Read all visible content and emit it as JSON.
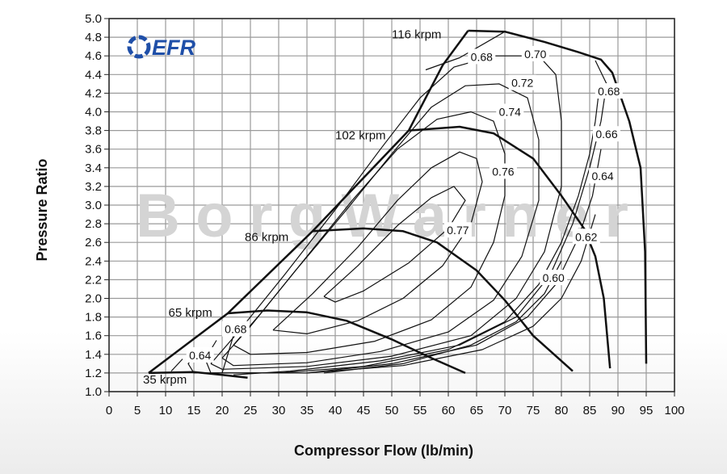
{
  "chart_data": {
    "type": "line",
    "title": "",
    "xlabel": "Compressor Flow (lb/min)",
    "ylabel": "Pressure Ratio",
    "xlim": [
      0,
      100
    ],
    "ylim": [
      1.0,
      5.0
    ],
    "x_ticks": [
      "0",
      "5",
      "10",
      "15",
      "20",
      "25",
      "30",
      "35",
      "40",
      "45",
      "50",
      "55",
      "60",
      "65",
      "70",
      "75",
      "80",
      "85",
      "90",
      "95",
      "100"
    ],
    "y_ticks": [
      "1.0",
      "1.2",
      "1.4",
      "1.6",
      "1.8",
      "2.0",
      "2.2",
      "2.4",
      "2.6",
      "2.8",
      "3.0",
      "3.2",
      "3.4",
      "3.6",
      "3.8",
      "4.0",
      "4.2",
      "4.4",
      "4.6",
      "4.8",
      "5.0"
    ],
    "grid": true,
    "logo_text": "EFR",
    "watermark_text": "BorgWarner",
    "surge_line": [
      [
        7,
        1.2
      ],
      [
        21,
        1.84
      ],
      [
        36,
        2.72
      ],
      [
        53,
        3.8
      ],
      [
        59,
        4.5
      ],
      [
        63.5,
        4.87
      ]
    ],
    "speed_lines": [
      {
        "label": "35 krpm",
        "label_at": [
          6,
          1.13
        ],
        "points": [
          [
            7,
            1.2
          ],
          [
            15,
            1.21
          ],
          [
            20,
            1.18
          ],
          [
            24.5,
            1.15
          ]
        ]
      },
      {
        "label": "65 krpm",
        "label_at": [
          10.5,
          1.85
        ],
        "points": [
          [
            21,
            1.84
          ],
          [
            28,
            1.87
          ],
          [
            35,
            1.85
          ],
          [
            42,
            1.76
          ],
          [
            50,
            1.56
          ],
          [
            57,
            1.36
          ],
          [
            63,
            1.2
          ]
        ]
      },
      {
        "label": "86 krpm",
        "label_at": [
          24,
          2.66
        ],
        "points": [
          [
            36,
            2.72
          ],
          [
            45,
            2.75
          ],
          [
            52,
            2.72
          ],
          [
            58,
            2.6
          ],
          [
            65,
            2.3
          ],
          [
            70,
            1.98
          ],
          [
            75,
            1.6
          ],
          [
            82,
            1.22
          ]
        ]
      },
      {
        "label": "102 krpm",
        "label_at": [
          40,
          3.75
        ],
        "points": [
          [
            53,
            3.8
          ],
          [
            62,
            3.84
          ],
          [
            68,
            3.77
          ],
          [
            75,
            3.5
          ],
          [
            80,
            3.1
          ],
          [
            84,
            2.75
          ],
          [
            86,
            2.45
          ],
          [
            87.5,
            2.0
          ],
          [
            88.6,
            1.25
          ]
        ]
      },
      {
        "label": "116 krpm",
        "label_at": [
          50,
          4.83
        ],
        "points": [
          [
            63.5,
            4.87
          ],
          [
            70,
            4.86
          ],
          [
            77,
            4.75
          ],
          [
            83,
            4.64
          ],
          [
            87,
            4.56
          ],
          [
            89,
            4.42
          ],
          [
            92,
            3.9
          ],
          [
            94,
            3.4
          ],
          [
            94.8,
            2.5
          ],
          [
            95,
            1.3
          ]
        ]
      }
    ],
    "efficiency_contours": [
      {
        "label": "0.77",
        "label_at": [
          61.7,
          2.73
        ],
        "points": [
          [
            38,
            2.02
          ],
          [
            44,
            2.35
          ],
          [
            51,
            2.78
          ],
          [
            57,
            3.08
          ],
          [
            61,
            3.2
          ],
          [
            63,
            3.05
          ],
          [
            60,
            2.75
          ],
          [
            53,
            2.38
          ],
          [
            45,
            2.08
          ],
          [
            40,
            1.96
          ],
          [
            38,
            2.02
          ]
        ]
      },
      {
        "label": "0.76",
        "label_at": [
          69.7,
          3.36
        ],
        "points": [
          [
            29,
            1.66
          ],
          [
            36,
            2.05
          ],
          [
            44,
            2.55
          ],
          [
            51,
            3.05
          ],
          [
            57,
            3.4
          ],
          [
            62,
            3.57
          ],
          [
            65,
            3.5
          ],
          [
            66,
            3.25
          ],
          [
            64,
            2.8
          ],
          [
            59,
            2.35
          ],
          [
            52,
            2.0
          ],
          [
            44,
            1.76
          ],
          [
            35,
            1.62
          ],
          [
            29,
            1.66
          ]
        ]
      },
      {
        "label": "0.74",
        "label_at": [
          70.9,
          4.0
        ],
        "points": [
          [
            22,
            1.5
          ],
          [
            27,
            1.85
          ],
          [
            35,
            2.45
          ],
          [
            43,
            3.05
          ],
          [
            51,
            3.6
          ],
          [
            58,
            3.92
          ],
          [
            64,
            4.0
          ],
          [
            68,
            3.9
          ],
          [
            70,
            3.55
          ],
          [
            70,
            3.1
          ],
          [
            68,
            2.6
          ],
          [
            64,
            2.12
          ],
          [
            57,
            1.77
          ],
          [
            47,
            1.54
          ],
          [
            35,
            1.42
          ],
          [
            25,
            1.4
          ],
          [
            22,
            1.5
          ]
        ]
      },
      {
        "label": "0.72",
        "label_at": [
          73.1,
          4.31
        ],
        "points": [
          [
            20,
            1.36
          ],
          [
            25,
            1.7
          ],
          [
            33,
            2.3
          ],
          [
            42,
            2.95
          ],
          [
            50,
            3.55
          ],
          [
            57,
            4.05
          ],
          [
            63,
            4.28
          ],
          [
            69,
            4.3
          ],
          [
            74,
            4.15
          ],
          [
            76,
            3.7
          ],
          [
            76,
            3.05
          ],
          [
            73,
            2.45
          ],
          [
            68,
            1.98
          ],
          [
            60,
            1.64
          ],
          [
            48,
            1.43
          ],
          [
            35,
            1.31
          ],
          [
            22,
            1.28
          ],
          [
            20,
            1.36
          ]
        ]
      },
      {
        "label": "0.70",
        "label_at": [
          75.4,
          4.62
        ],
        "points": [
          [
            18,
            1.3
          ],
          [
            23,
            1.65
          ],
          [
            31,
            2.25
          ],
          [
            40,
            2.95
          ],
          [
            48,
            3.6
          ],
          [
            55,
            4.15
          ],
          [
            61,
            4.48
          ],
          [
            68,
            4.6
          ],
          [
            76,
            4.6
          ],
          [
            79,
            4.4
          ],
          [
            80,
            3.9
          ],
          [
            80,
            3.2
          ],
          [
            77,
            2.5
          ],
          [
            72,
            2.0
          ],
          [
            64,
            1.6
          ],
          [
            50,
            1.38
          ],
          [
            35,
            1.27
          ],
          [
            20,
            1.24
          ],
          [
            18,
            1.3
          ]
        ]
      },
      {
        "label": "0.68",
        "label_at": [
          65.9,
          4.59
        ],
        "points": [
          [
            56,
            4.45
          ],
          [
            62,
            4.58
          ],
          [
            70,
            4.86
          ]
        ]
      },
      {
        "label": "0.68",
        "label_at": [
          88.4,
          4.22
        ],
        "points": [
          [
            86,
            4.55
          ],
          [
            88,
            4.3
          ],
          [
            87,
            3.9
          ],
          [
            85,
            3.4
          ],
          [
            82,
            2.8
          ],
          [
            78,
            2.25
          ],
          [
            72,
            1.8
          ],
          [
            62,
            1.5
          ],
          [
            48,
            1.33
          ],
          [
            32,
            1.22
          ],
          [
            22,
            1.18
          ]
        ]
      },
      {
        "label": "0.68",
        "label_at": [
          22.4,
          1.67
        ],
        "points": [
          [
            20,
            1.2
          ],
          [
            21,
            1.4
          ],
          [
            22,
            1.6
          ],
          [
            23,
            1.72
          ]
        ]
      },
      {
        "label": "0.66",
        "label_at": [
          88,
          3.76
        ],
        "points": [
          [
            86.5,
            4.15
          ],
          [
            86,
            3.9
          ],
          [
            85,
            3.55
          ],
          [
            83,
            3.1
          ],
          [
            80,
            2.6
          ],
          [
            76,
            2.15
          ],
          [
            70,
            1.75
          ],
          [
            60,
            1.45
          ],
          [
            45,
            1.27
          ],
          [
            30,
            1.2
          ],
          [
            18,
            1.2
          ],
          [
            17,
            1.35
          ],
          [
            19,
            1.55
          ]
        ]
      },
      {
        "label": "0.64",
        "label_at": [
          87.3,
          3.31
        ],
        "points": [
          [
            87,
            3.6
          ],
          [
            85.5,
            3.1
          ],
          [
            83,
            2.65
          ],
          [
            79,
            2.15
          ],
          [
            74,
            1.8
          ],
          [
            65,
            1.5
          ],
          [
            50,
            1.3
          ],
          [
            35,
            1.2
          ],
          [
            15,
            1.2
          ],
          [
            14,
            1.3
          ],
          [
            16,
            1.45
          ]
        ]
      },
      {
        "label": "0.64",
        "label_at": [
          16.1,
          1.39
        ],
        "points": [
          [
            11,
            1.22
          ],
          [
            13,
            1.35
          ]
        ]
      },
      {
        "label": "0.62",
        "label_at": [
          84.4,
          2.66
        ],
        "points": [
          [
            86,
            2.9
          ],
          [
            83.5,
            2.4
          ],
          [
            80,
            2.0
          ],
          [
            75,
            1.7
          ],
          [
            66,
            1.45
          ],
          [
            52,
            1.28
          ],
          [
            35,
            1.2
          ]
        ]
      },
      {
        "label": "0.60",
        "label_at": [
          78.6,
          2.22
        ],
        "points": [
          [
            80,
            2.4
          ],
          [
            77,
            2.05
          ],
          [
            72,
            1.75
          ],
          [
            64,
            1.5
          ],
          [
            52,
            1.3
          ],
          [
            38,
            1.2
          ]
        ]
      }
    ]
  }
}
